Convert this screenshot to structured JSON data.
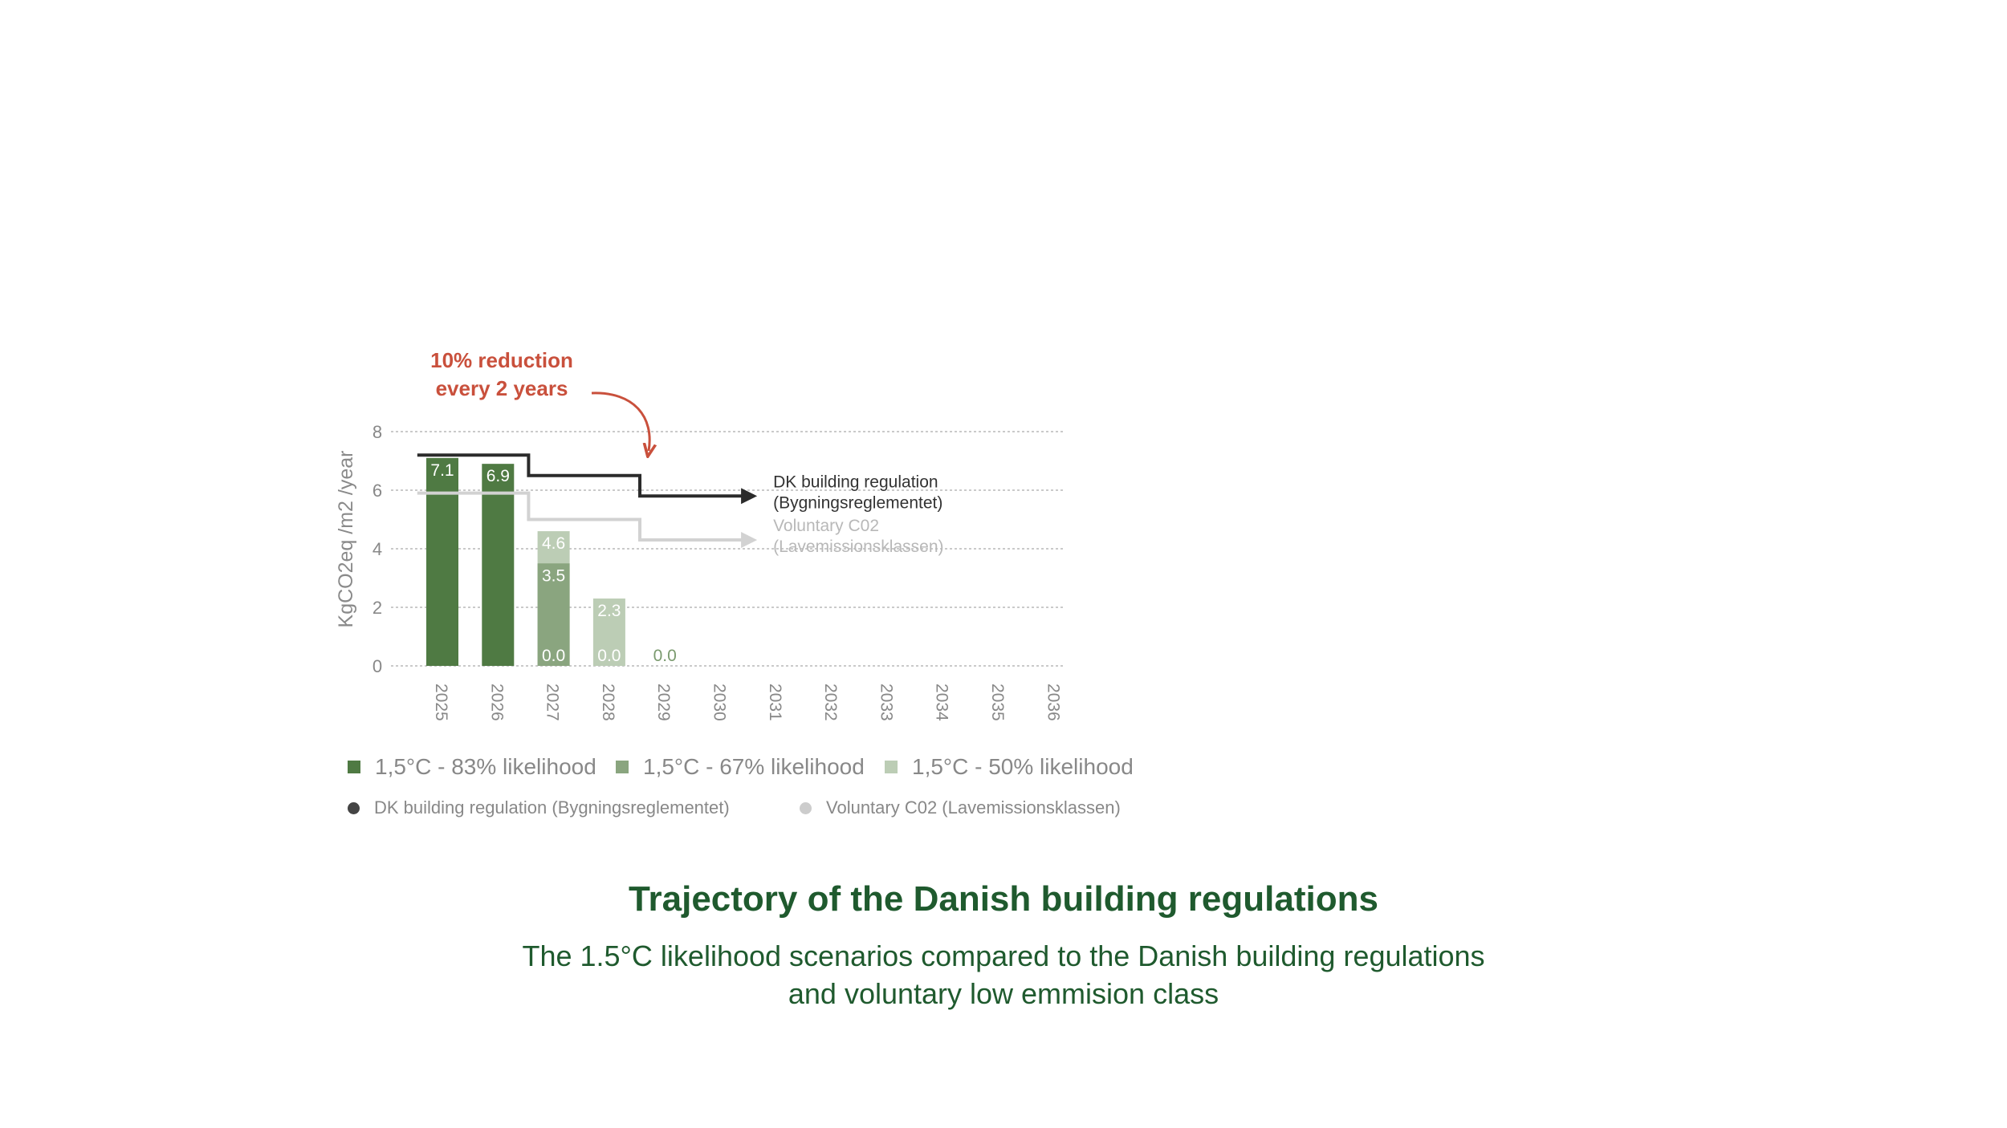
{
  "chart_data": {
    "type": "bar",
    "title": "Trajectory of the Danish building regulations",
    "subtitle_line1": "The 1.5°C likelihood scenarios compared to the Danish building regulations",
    "subtitle_line2": "and voluntary low emmision class",
    "ylabel": "KgCO2eq /m2 /year",
    "xlabel": "",
    "ylim": [
      0,
      8
    ],
    "yticks": [
      "0",
      "2",
      "4",
      "6",
      "8"
    ],
    "grid": true,
    "categories": [
      "2025",
      "2026",
      "2027",
      "2028",
      "2029",
      "2030",
      "2031",
      "2032",
      "2033",
      "2034",
      "2035",
      "2036"
    ],
    "series": [
      {
        "name": "1,5°C - 83% likelihood",
        "color": "#4f7a43",
        "values": [
          7.1,
          6.9,
          0.0,
          0.0,
          0.0,
          null,
          null,
          null,
          null,
          null,
          null,
          null
        ]
      },
      {
        "name": "1,5°C - 67% likelihood",
        "color": "#8aa57f",
        "values": [
          null,
          null,
          3.5,
          null,
          null,
          null,
          null,
          null,
          null,
          null,
          null,
          null
        ]
      },
      {
        "name": "1,5°C - 50% likelihood",
        "color": "#bccdb5",
        "values": [
          null,
          null,
          4.6,
          2.3,
          null,
          null,
          null,
          null,
          null,
          null,
          null,
          null
        ]
      }
    ],
    "bar_labels": [
      {
        "cat": 0,
        "value": 7.1,
        "text": "7.1",
        "color": "#ffffff"
      },
      {
        "cat": 1,
        "value": 6.9,
        "text": "6.9",
        "color": "#ffffff"
      },
      {
        "cat": 2,
        "value": 4.6,
        "text": "4.6",
        "color": "#ffffff"
      },
      {
        "cat": 2,
        "value": 3.5,
        "text": "3.5",
        "color": "#ffffff"
      },
      {
        "cat": 2,
        "value": 0.0,
        "text": "0.0",
        "color": "#ffffff"
      },
      {
        "cat": 3,
        "value": 2.3,
        "text": "2.3",
        "color": "#ffffff"
      },
      {
        "cat": 3,
        "value": 0.0,
        "text": "0.0",
        "color": "#ffffff"
      },
      {
        "cat": 4,
        "value": 0.0,
        "text": "0.0",
        "color": "#7a9a6e"
      }
    ],
    "lines": [
      {
        "name": "DK building regulation (Bygningsreglementet)",
        "label_line1": "DK building regulation",
        "label_line2": "(Bygningsreglementet)",
        "color": "#2b2b2b",
        "steps": [
          {
            "from": 2024.55,
            "to": 2026.55,
            "y": 7.2
          },
          {
            "from": 2026.55,
            "to": 2028.55,
            "y": 6.5
          },
          {
            "from": 2028.55,
            "to": 2030.6,
            "y": 5.8
          }
        ]
      },
      {
        "name": "Voluntary C02 (Lavemissionsklassen)",
        "label_line1": "Voluntary C02",
        "label_line2": "(Lavemissionsklassen)",
        "color": "#d2d2d2",
        "steps": [
          {
            "from": 2024.55,
            "to": 2026.55,
            "y": 5.9
          },
          {
            "from": 2026.55,
            "to": 2028.55,
            "y": 5.0
          },
          {
            "from": 2028.55,
            "to": 2030.6,
            "y": 4.3
          }
        ]
      }
    ],
    "annotation": {
      "line1": "10% reduction",
      "line2": "every 2 years",
      "color": "#c9503c"
    },
    "legend_lines": [
      "DK building regulation (Bygningsreglementet)",
      "Voluntary C02 (Lavemissionsklassen)"
    ]
  }
}
